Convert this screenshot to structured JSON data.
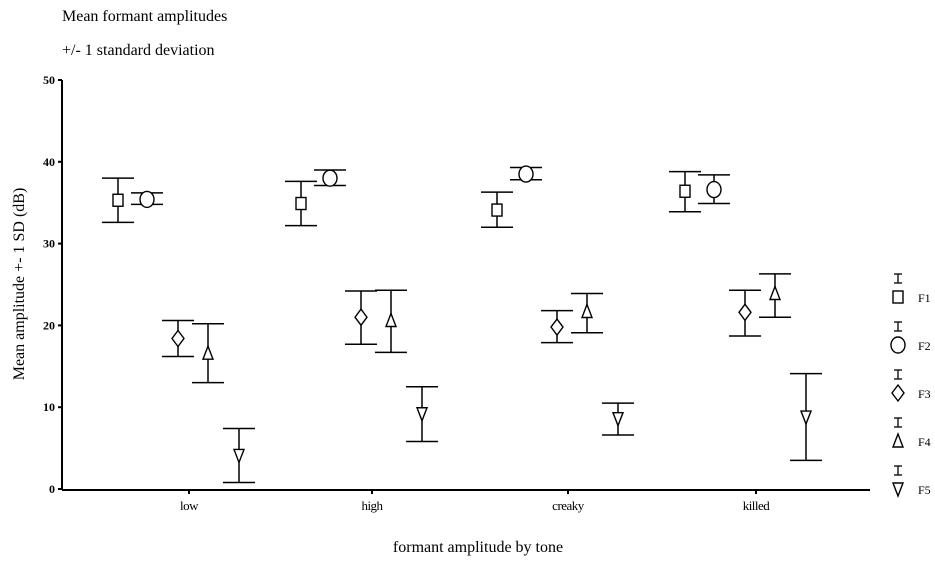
{
  "chart_data": {
    "type": "scatter",
    "title": "Mean formant amplitudes",
    "subtitle": "+/- 1 standard deviation",
    "xlabel": "formant amplitude by tone",
    "ylabel": "Mean amplitude +- 1 SD (dB)",
    "categories": [
      "low",
      "high",
      "creaky",
      "killed"
    ],
    "ylim": [
      0,
      50
    ],
    "yticks": [
      "0",
      "10",
      "20",
      "30",
      "40",
      "50"
    ],
    "grid": false,
    "legend_position": "right",
    "series": [
      {
        "name": "F1",
        "marker": "square",
        "values": [
          35.3,
          34.9,
          34.1,
          36.4
        ],
        "error_low": [
          32.6,
          32.2,
          32.0,
          33.9
        ],
        "error_high": [
          38.0,
          37.6,
          36.3,
          38.8
        ]
      },
      {
        "name": "F2",
        "marker": "circle",
        "values": [
          35.4,
          38.0,
          38.5,
          36.6
        ],
        "error_low": [
          34.8,
          37.1,
          37.8,
          34.9
        ],
        "error_high": [
          36.2,
          39.0,
          39.3,
          38.4
        ]
      },
      {
        "name": "F3",
        "marker": "diamond",
        "values": [
          18.4,
          21.0,
          19.8,
          21.6
        ],
        "error_low": [
          16.2,
          17.7,
          17.9,
          18.7
        ],
        "error_high": [
          20.6,
          24.2,
          21.8,
          24.3
        ]
      },
      {
        "name": "F4",
        "marker": "triangle-up",
        "values": [
          16.6,
          20.6,
          21.7,
          23.9
        ],
        "error_low": [
          13.0,
          16.7,
          19.1,
          21.0
        ],
        "error_high": [
          20.2,
          24.3,
          23.9,
          26.3
        ]
      },
      {
        "name": "F5",
        "marker": "triangle-down",
        "values": [
          4.1,
          9.2,
          8.6,
          8.8
        ],
        "error_low": [
          0.8,
          5.8,
          6.6,
          3.5
        ],
        "error_high": [
          7.4,
          12.5,
          10.5,
          14.1
        ]
      }
    ]
  }
}
